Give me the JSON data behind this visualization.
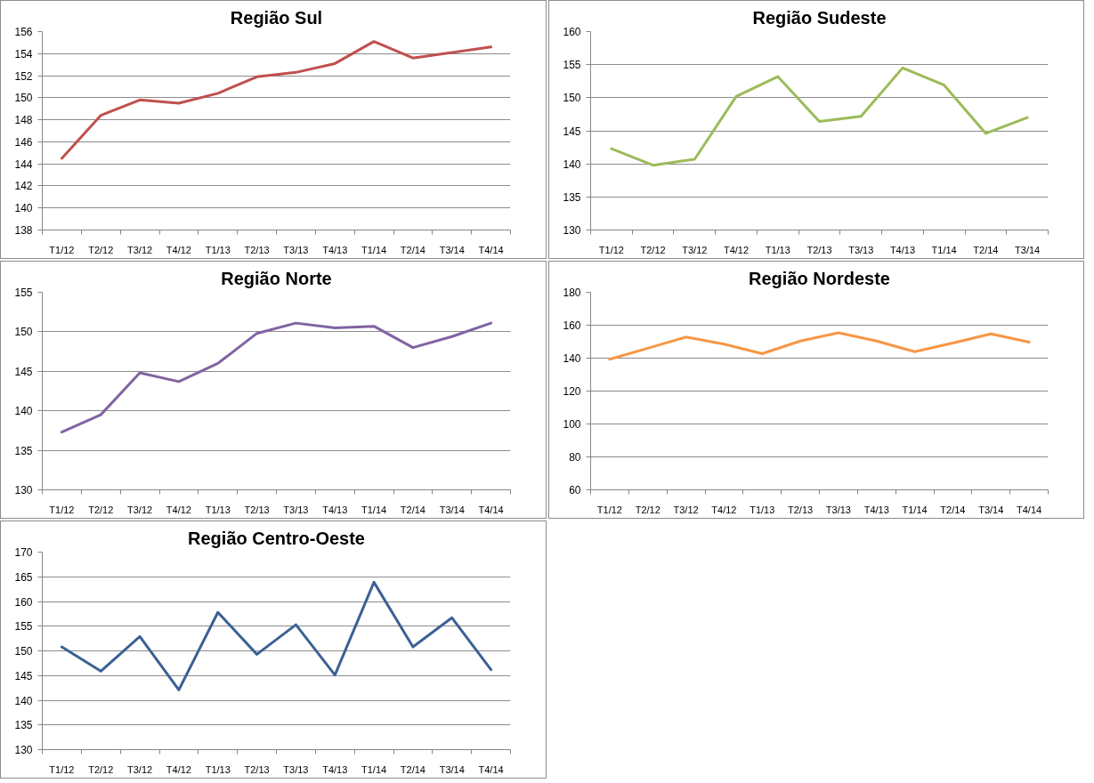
{
  "chart_data": [
    {
      "type": "line",
      "title": "Região Sul",
      "categories": [
        "T1/12",
        "T2/12",
        "T3/12",
        "T4/12",
        "T1/13",
        "T2/13",
        "T3/13",
        "T4/13",
        "T1/14",
        "T2/14",
        "T3/14",
        "T4/14"
      ],
      "series": [
        {
          "color": "#c0504d",
          "values": [
            144.5,
            148.4,
            149.8,
            149.5,
            150.4,
            151.9,
            152.3,
            153.1,
            155.1,
            153.6,
            154.1,
            154.6
          ]
        }
      ],
      "ylim": [
        138,
        156
      ],
      "yticks": [
        138,
        140,
        142,
        144,
        146,
        148,
        150,
        152,
        154,
        156
      ],
      "grid": "y"
    },
    {
      "type": "line",
      "title": "Região Sudeste",
      "categories": [
        "T1/12",
        "T2/12",
        "T3/12",
        "T4/12",
        "T1/13",
        "T2/13",
        "T3/13",
        "T4/13",
        "T1/14",
        "T2/14",
        "T3/14"
      ],
      "series": [
        {
          "color": "#9bbb59",
          "values": [
            142.3,
            139.8,
            140.7,
            150.2,
            153.2,
            146.4,
            147.2,
            154.5,
            151.9,
            144.6,
            147.0
          ]
        }
      ],
      "ylim": [
        130,
        160
      ],
      "yticks": [
        130,
        135,
        140,
        145,
        150,
        155,
        160
      ],
      "grid": "y"
    },
    {
      "type": "line",
      "title": "Região Norte",
      "categories": [
        "T1/12",
        "T2/12",
        "T3/12",
        "T4/12",
        "T1/13",
        "T2/13",
        "T3/13",
        "T4/13",
        "T1/14",
        "T2/14",
        "T3/14",
        "T4/14"
      ],
      "series": [
        {
          "color": "#8064a2",
          "values": [
            137.3,
            139.5,
            144.8,
            143.7,
            146.0,
            149.8,
            151.1,
            150.5,
            150.7,
            148.0,
            149.4,
            151.1
          ]
        }
      ],
      "ylim": [
        130,
        155
      ],
      "yticks": [
        130,
        135,
        140,
        145,
        150,
        155
      ],
      "grid": "y"
    },
    {
      "type": "line",
      "title": "Região Nordeste",
      "categories": [
        "T1/12",
        "T2/12",
        "T3/12",
        "T4/12",
        "T1/13",
        "T2/13",
        "T3/13",
        "T4/13",
        "T1/14",
        "T2/14",
        "T3/14",
        "T4/14"
      ],
      "series": [
        {
          "color": "#f79646",
          "values": [
            139.3,
            146.0,
            152.8,
            148.5,
            142.7,
            150.4,
            155.4,
            150.4,
            143.9,
            149.2,
            154.7,
            149.7
          ]
        }
      ],
      "ylim": [
        60,
        180
      ],
      "yticks": [
        60,
        80,
        100,
        120,
        140,
        160,
        180
      ],
      "grid": "y"
    },
    {
      "type": "line",
      "title": "Região Centro-Oeste",
      "categories": [
        "T1/12",
        "T2/12",
        "T3/12",
        "T4/12",
        "T1/13",
        "T2/13",
        "T3/13",
        "T4/13",
        "T1/14",
        "T2/14",
        "T3/14",
        "T4/14"
      ],
      "series": [
        {
          "color": "#3a6195",
          "values": [
            150.8,
            145.9,
            152.9,
            142.1,
            157.8,
            149.3,
            155.3,
            145.1,
            163.9,
            150.8,
            156.7,
            146.2
          ]
        }
      ],
      "ylim": [
        130,
        170
      ],
      "yticks": [
        130,
        135,
        140,
        145,
        150,
        155,
        160,
        165,
        170
      ],
      "grid": "y"
    }
  ]
}
